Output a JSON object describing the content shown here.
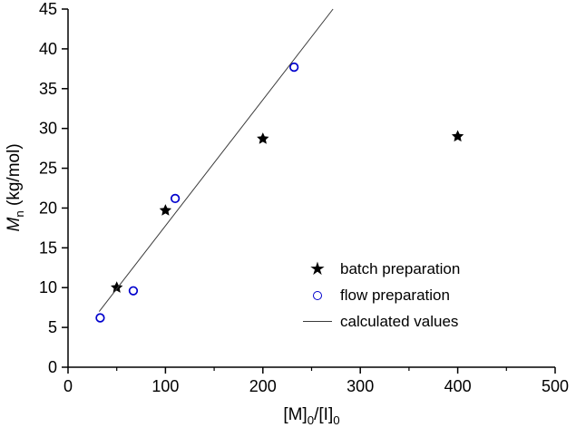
{
  "chart_data": {
    "type": "scatter",
    "title": "",
    "xlabel_text": "[M]0/[I]0",
    "ylabel_text": "Mn (kg/mol)",
    "xlim": [
      0,
      500
    ],
    "ylim": [
      0,
      45
    ],
    "x_ticks": [
      0,
      100,
      200,
      300,
      400,
      500
    ],
    "y_ticks": [
      0,
      5,
      10,
      15,
      20,
      25,
      30,
      35,
      40,
      45
    ],
    "x_minor_step": 50,
    "grid": "off",
    "legend_position": "inside-right-center",
    "series": [
      {
        "name": "batch preparation",
        "kind": "scatter",
        "marker": "star-filled",
        "color": "#000000",
        "points": [
          [
            50,
            10.0
          ],
          [
            100,
            19.7
          ],
          [
            200,
            28.7
          ],
          [
            400,
            29.0
          ]
        ]
      },
      {
        "name": "flow preparation",
        "kind": "scatter",
        "marker": "circle-open",
        "color": "#0000cd",
        "points": [
          [
            33,
            6.2
          ],
          [
            67,
            9.6
          ],
          [
            110,
            21.2
          ],
          [
            232,
            37.7
          ]
        ]
      },
      {
        "name": "calculated values",
        "kind": "line",
        "color": "#3a3a3a",
        "points": [
          [
            32,
            7.0
          ],
          [
            272,
            45.0
          ]
        ]
      }
    ]
  },
  "labels": {
    "xlabel": {
      "p1": "[M]",
      "s1": "0",
      "p2": "/[I]",
      "s2": "0"
    },
    "ylabel": {
      "m": "M",
      "sub": "n",
      "rest": " (kg/mol)"
    }
  }
}
